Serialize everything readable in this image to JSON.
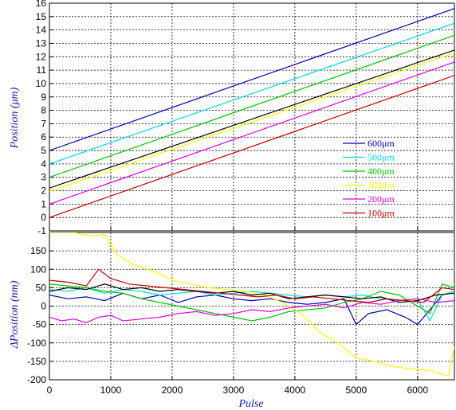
{
  "chart_data": [
    {
      "type": "line",
      "panel": "top",
      "xlabel": "",
      "ylabel": "Position (μm)",
      "xlim": [
        0,
        6600
      ],
      "ylim": [
        -1,
        16
      ],
      "xticks": [
        0,
        1000,
        2000,
        3000,
        4000,
        5000,
        6000
      ],
      "yticks": [
        -1,
        0,
        1,
        2,
        3,
        4,
        5,
        6,
        7,
        8,
        9,
        10,
        11,
        12,
        13,
        14,
        15,
        16
      ],
      "grid": true,
      "legend_position": "lower-right",
      "series": [
        {
          "name": "600μm",
          "color": "#0000aa",
          "x": [
            0,
            6600
          ],
          "y": [
            5.0,
            15.6
          ]
        },
        {
          "name": "500μm",
          "color": "#00d8e0",
          "x": [
            0,
            6600
          ],
          "y": [
            4.0,
            14.5
          ]
        },
        {
          "name": "400μm",
          "color": "#00c000",
          "x": [
            0,
            6600
          ],
          "y": [
            3.0,
            13.6
          ]
        },
        {
          "name": "300μm",
          "color": "#ffff00",
          "x": [
            0,
            6600
          ],
          "y": [
            1.95,
            12.3
          ]
        },
        {
          "name": "",
          "color": "#000000",
          "x": [
            0,
            6600
          ],
          "y": [
            2.2,
            12.5
          ]
        },
        {
          "name": "200μm",
          "color": "#e000e0",
          "x": [
            0,
            6600
          ],
          "y": [
            1.0,
            11.6
          ]
        },
        {
          "name": "100μm",
          "color": "#c00000",
          "x": [
            0,
            6600
          ],
          "y": [
            0.0,
            10.6
          ]
        }
      ]
    },
    {
      "type": "line",
      "panel": "bottom",
      "xlabel": "Pulse",
      "ylabel": "ΔPosition (nm)",
      "xlim": [
        0,
        6600
      ],
      "ylim": [
        -200,
        200
      ],
      "xticks": [
        0,
        1000,
        2000,
        3000,
        4000,
        5000,
        6000
      ],
      "yticks": [
        -200,
        -150,
        -100,
        -50,
        0,
        50,
        100,
        150
      ],
      "grid": true,
      "series": [
        {
          "name": "600μm",
          "color": "#0000aa",
          "x": [
            0,
            300,
            600,
            900,
            1200,
            1500,
            1800,
            2100,
            2400,
            2700,
            3000,
            3300,
            3600,
            3900,
            4200,
            4500,
            4800,
            5000,
            5200,
            5500,
            5800,
            6000,
            6200,
            6400,
            6600
          ],
          "y": [
            30,
            20,
            25,
            15,
            35,
            20,
            30,
            10,
            25,
            30,
            20,
            15,
            20,
            10,
            5,
            10,
            20,
            -50,
            -20,
            -10,
            -30,
            -50,
            -10,
            30,
            40
          ]
        },
        {
          "name": "500μm",
          "color": "#00d8e0",
          "x": [
            0,
            300,
            600,
            900,
            1200,
            1500,
            1800,
            2100,
            2400,
            2700,
            3000,
            3300,
            3600,
            3900,
            4200,
            4500,
            4800,
            5100,
            5400,
            5700,
            6000,
            6200,
            6400,
            6600
          ],
          "y": [
            45,
            40,
            50,
            35,
            45,
            40,
            30,
            35,
            40,
            30,
            35,
            40,
            35,
            30,
            25,
            30,
            25,
            30,
            20,
            15,
            20,
            -40,
            30,
            40
          ]
        },
        {
          "name": "400μm",
          "color": "#00c000",
          "x": [
            0,
            300,
            600,
            900,
            1200,
            1500,
            1800,
            2100,
            2400,
            2700,
            3000,
            3300,
            3600,
            3900,
            4200,
            4500,
            4800,
            5100,
            5400,
            5700,
            6000,
            6200,
            6400,
            6600
          ],
          "y": [
            60,
            55,
            50,
            40,
            35,
            20,
            10,
            0,
            -10,
            -20,
            -30,
            -40,
            -30,
            -15,
            -10,
            -5,
            10,
            20,
            40,
            30,
            0,
            -20,
            60,
            50
          ]
        },
        {
          "name": "300μm",
          "color": "#ffff00",
          "x": [
            0,
            400,
            700,
            900,
            1100,
            1400,
            1700,
            2000,
            2300,
            2600,
            2900,
            3200,
            3500,
            3800,
            4100,
            4400,
            4700,
            5000,
            5300,
            5600,
            5900,
            6200,
            6500,
            6600
          ],
          "y": [
            200,
            200,
            190,
            195,
            140,
            110,
            95,
            70,
            60,
            50,
            45,
            40,
            30,
            10,
            -20,
            -70,
            -100,
            -140,
            -150,
            -165,
            -170,
            -175,
            -190,
            -110
          ]
        },
        {
          "name": "",
          "color": "#000000",
          "x": [
            0,
            300,
            600,
            900,
            1200,
            1500,
            1800,
            2100,
            2400,
            2700,
            3000,
            3300,
            3600,
            3900,
            4200,
            4500,
            4800,
            5100,
            5400,
            5700,
            6000,
            6300,
            6600
          ],
          "y": [
            40,
            50,
            45,
            60,
            45,
            50,
            40,
            45,
            40,
            35,
            40,
            30,
            35,
            20,
            25,
            30,
            25,
            20,
            25,
            10,
            15,
            30,
            35
          ]
        },
        {
          "name": "200μm",
          "color": "#e000e0",
          "x": [
            0,
            200,
            400,
            600,
            800,
            1000,
            1200,
            1500,
            1800,
            2100,
            2400,
            2700,
            3000,
            3300,
            3600,
            3900,
            4200,
            4500,
            4800,
            5100,
            5400,
            5700,
            6000,
            6300,
            6600
          ],
          "y": [
            -30,
            -40,
            -35,
            -45,
            -30,
            -25,
            -40,
            -35,
            -30,
            -20,
            -15,
            -25,
            -20,
            -10,
            -15,
            -5,
            0,
            5,
            -5,
            10,
            5,
            15,
            20,
            10,
            15
          ]
        },
        {
          "name": "100μm",
          "color": "#c00000",
          "x": [
            0,
            300,
            600,
            800,
            1000,
            1300,
            1600,
            1900,
            2200,
            2500,
            2800,
            3100,
            3400,
            3700,
            4000,
            4300,
            4600,
            4900,
            5200,
            5500,
            5800,
            6100,
            6400,
            6600
          ],
          "y": [
            70,
            65,
            55,
            100,
            75,
            60,
            55,
            50,
            45,
            40,
            35,
            30,
            25,
            30,
            20,
            25,
            20,
            15,
            10,
            20,
            15,
            10,
            50,
            45
          ]
        }
      ]
    }
  ]
}
